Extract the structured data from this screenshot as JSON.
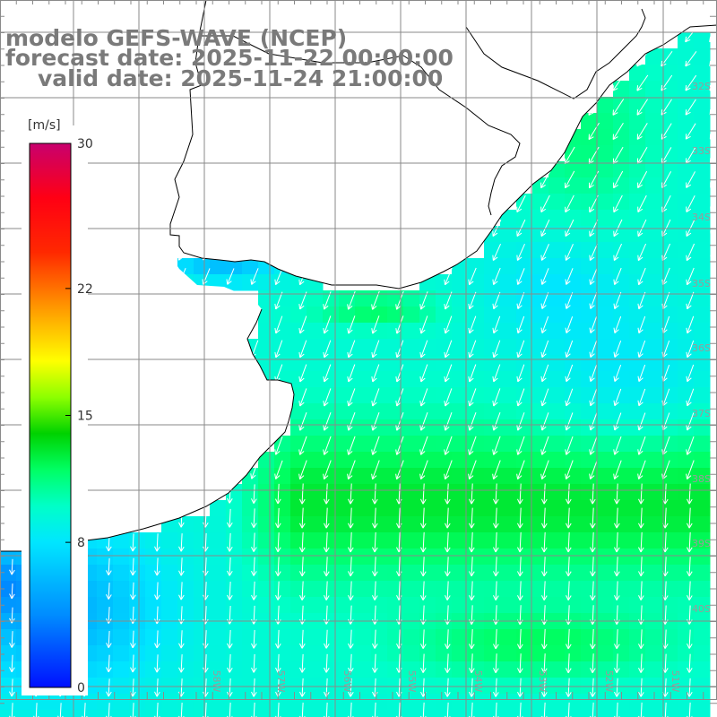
{
  "title": {
    "line1": "modelo GEFS-WAVE (NCEP)",
    "line2": "forecast date: 2025-11-22 00:00:00",
    "line3": "valid date: 2025-11-24 21:00:00"
  },
  "legend": {
    "unit": "[m/s]",
    "ticks": [
      "30",
      "22",
      "15",
      "8",
      "0"
    ],
    "tick_values": [
      30,
      22,
      15,
      8,
      0
    ],
    "range": [
      0,
      30
    ],
    "colors": [
      "#0010ff",
      "#00c8ff",
      "#00ffff",
      "#00ff60",
      "#00d000",
      "#7cff00",
      "#ffff00",
      "#ffa000",
      "#ff3000",
      "#ff0000",
      "#c8006e"
    ]
  },
  "graticule": {
    "lat_labels": [
      "32S",
      "33S",
      "34S",
      "35S",
      "36S",
      "37S",
      "38S",
      "39S",
      "40S"
    ],
    "lon_labels": [
      "58W",
      "57W",
      "56W",
      "55W",
      "54W",
      "53W",
      "52W",
      "51W"
    ]
  },
  "colors": {
    "title_text": "#7a7a7a",
    "grid": "#8a8a8a",
    "coast": "#000000",
    "arrow": "#ffffff",
    "land": "#ffffff"
  },
  "map": {
    "variable": "wind speed and direction",
    "arrow_direction": "mostly toward south-southwest, southwest near coast"
  }
}
